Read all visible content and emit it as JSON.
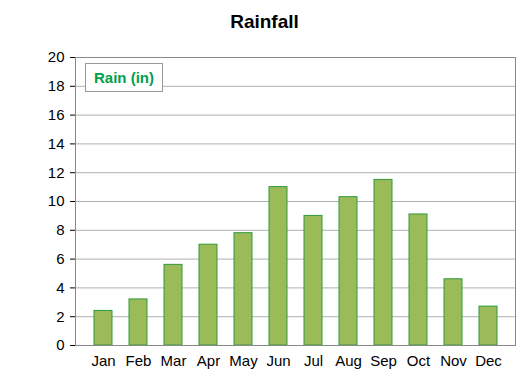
{
  "chart_data": {
    "type": "bar",
    "title": "Rainfall",
    "categories": [
      "Jan",
      "Feb",
      "Mar",
      "Apr",
      "May",
      "Jun",
      "Jul",
      "Aug",
      "Sep",
      "Oct",
      "Nov",
      "Dec"
    ],
    "series": [
      {
        "name": "Rain (in)",
        "color": "#9bbb59",
        "values": [
          2.4,
          3.2,
          5.6,
          7.0,
          7.8,
          11.0,
          9.0,
          10.3,
          11.5,
          9.1,
          4.6,
          2.7
        ]
      }
    ],
    "ylim": [
      0,
      20
    ],
    "yticks": [
      0,
      2,
      4,
      6,
      8,
      10,
      12,
      14,
      16,
      18,
      20
    ],
    "grid": true,
    "legend": "top-left"
  }
}
